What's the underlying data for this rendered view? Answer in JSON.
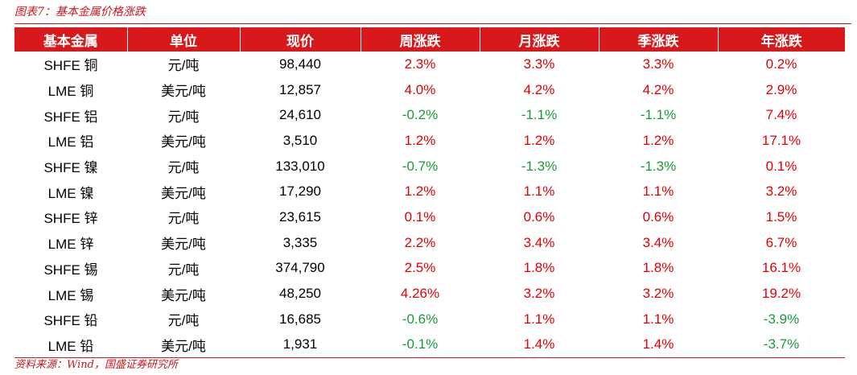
{
  "caption": "图表7：基本金属价格涨跌",
  "source": "资料来源：Wind，国盛证券研究所",
  "colors": {
    "header_bg": "#d7191c",
    "positive": "#e30000",
    "negative": "#1a9a36",
    "caption": "#c8161d"
  },
  "table": {
    "headers": [
      "基本金属",
      "单位",
      "现价",
      "周涨跌",
      "月涨跌",
      "季涨跌",
      "年涨跌"
    ],
    "rows": [
      [
        "SHFE 铜",
        "元/吨",
        "98,440",
        "2.3%",
        "3.3%",
        "3.3%",
        "0.2%"
      ],
      [
        "LME 铜",
        "美元/吨",
        "12,857",
        "4.0%",
        "4.2%",
        "4.2%",
        "2.9%"
      ],
      [
        "SHFE 铝",
        "元/吨",
        "24,610",
        "-0.2%",
        "-1.1%",
        "-1.1%",
        "7.4%"
      ],
      [
        "LME 铝",
        "美元/吨",
        "3,510",
        "1.2%",
        "1.2%",
        "1.2%",
        "17.1%"
      ],
      [
        "SHFE 镍",
        "元/吨",
        "133,010",
        "-0.7%",
        "-1.3%",
        "-1.3%",
        "0.1%"
      ],
      [
        "LME 镍",
        "美元/吨",
        "17,290",
        "1.2%",
        "1.1%",
        "1.1%",
        "3.2%"
      ],
      [
        "SHFE 锌",
        "元/吨",
        "23,615",
        "0.1%",
        "0.6%",
        "0.6%",
        "1.5%"
      ],
      [
        "LME 锌",
        "美元/吨",
        "3,335",
        "2.2%",
        "3.4%",
        "3.4%",
        "6.7%"
      ],
      [
        "SHFE 锡",
        "元/吨",
        "374,790",
        "2.5%",
        "1.8%",
        "1.8%",
        "16.1%"
      ],
      [
        "LME 锡",
        "美元/吨",
        "48,250",
        "4.26%",
        "3.2%",
        "3.2%",
        "19.2%"
      ],
      [
        "SHFE 铅",
        "元/吨",
        "16,685",
        "-0.6%",
        "1.1%",
        "1.1%",
        "-3.9%"
      ],
      [
        "LME 铅",
        "美元/吨",
        "1,931",
        "-0.1%",
        "1.4%",
        "1.4%",
        "-3.7%"
      ]
    ]
  }
}
